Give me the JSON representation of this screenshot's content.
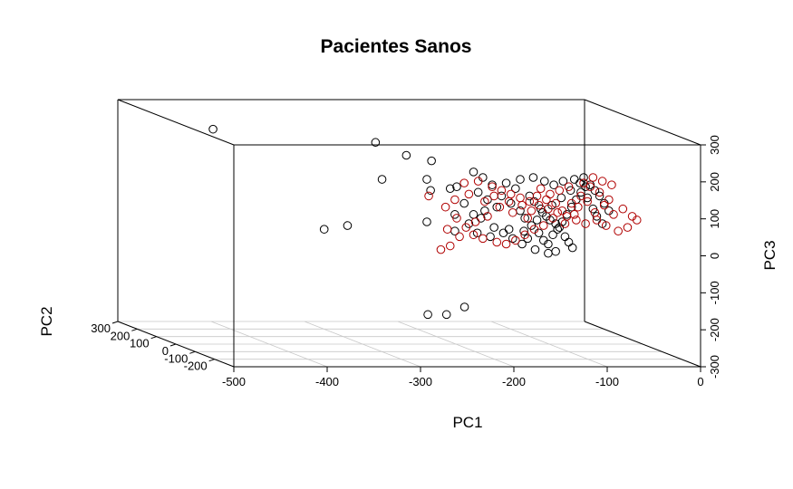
{
  "chart_data": {
    "type": "scatter",
    "title": "Pacientes Sanos",
    "xlabel": "PC1",
    "ylabel": "PC2",
    "zlabel": "PC3",
    "xlim": [
      -500,
      0
    ],
    "ylim": [
      -300,
      300
    ],
    "zlim": [
      -300,
      300
    ],
    "x_ticks": [
      "-500",
      "-400",
      "-300",
      "-200",
      "-100",
      "0"
    ],
    "y_ticks": [
      "-200",
      "-100",
      "0",
      "100",
      "200",
      "300"
    ],
    "z_ticks": [
      "-300",
      "-200",
      "-100",
      "0",
      "100",
      "200",
      "300"
    ],
    "grid": true,
    "series": [
      {
        "color": "#000000",
        "points": [
          {
            "x": -398,
            "y": 300,
            "z": 220
          },
          {
            "x": -255,
            "y": 150,
            "z": 215
          },
          {
            "x": -222,
            "y": 150,
            "z": 180
          },
          {
            "x": -195,
            "y": 150,
            "z": 165
          },
          {
            "x": -248,
            "y": 150,
            "z": 115
          },
          {
            "x": -200,
            "y": 150,
            "z": 115
          },
          {
            "x": -196,
            "y": 150,
            "z": 85
          },
          {
            "x": -175,
            "y": 150,
            "z": 90
          },
          {
            "x": -168,
            "y": 150,
            "z": 95
          },
          {
            "x": -285,
            "y": 150,
            "z": -10
          },
          {
            "x": -200,
            "y": 150,
            "z": 0
          },
          {
            "x": -310,
            "y": 150,
            "z": -20
          },
          {
            "x": -170,
            "y": 150,
            "z": 20
          },
          {
            "x": -170,
            "y": 150,
            "z": -25
          },
          {
            "x": -230,
            "y": 0,
            "z": -220
          },
          {
            "x": -210,
            "y": 0,
            "z": -220
          },
          {
            "x": -170,
            "y": 100,
            "z": -220
          },
          {
            "x": -150,
            "y": 150,
            "z": 135
          },
          {
            "x": -140,
            "y": 150,
            "z": 120
          },
          {
            "x": -130,
            "y": 150,
            "z": 100
          },
          {
            "x": -145,
            "y": 150,
            "z": 80
          },
          {
            "x": -120,
            "y": 150,
            "z": 70
          },
          {
            "x": -110,
            "y": 150,
            "z": 50
          },
          {
            "x": -125,
            "y": 150,
            "z": 40
          },
          {
            "x": -100,
            "y": 150,
            "z": 30
          },
          {
            "x": -95,
            "y": 150,
            "z": 10
          },
          {
            "x": -88,
            "y": 150,
            "z": -10
          },
          {
            "x": -80,
            "y": 150,
            "z": -30
          },
          {
            "x": -75,
            "y": 150,
            "z": -50
          },
          {
            "x": -70,
            "y": 150,
            "z": -60
          },
          {
            "x": -65,
            "y": 150,
            "z": -35
          },
          {
            "x": -60,
            "y": 150,
            "z": -20
          },
          {
            "x": -55,
            "y": 150,
            "z": 0
          },
          {
            "x": -50,
            "y": 150,
            "z": 20
          },
          {
            "x": -45,
            "y": 150,
            "z": 40
          },
          {
            "x": -40,
            "y": 150,
            "z": 60
          },
          {
            "x": -35,
            "y": 150,
            "z": 80
          },
          {
            "x": -30,
            "y": 150,
            "z": 95
          },
          {
            "x": -25,
            "y": 150,
            "z": 100
          },
          {
            "x": -20,
            "y": 150,
            "z": 85
          },
          {
            "x": -15,
            "y": 150,
            "z": 70
          },
          {
            "x": -10,
            "y": 150,
            "z": 50
          },
          {
            "x": -5,
            "y": 150,
            "z": 30
          },
          {
            "x": -115,
            "y": 150,
            "z": 105
          },
          {
            "x": -105,
            "y": 150,
            "z": 90
          },
          {
            "x": -90,
            "y": 150,
            "z": 70
          },
          {
            "x": -85,
            "y": 150,
            "z": 55
          },
          {
            "x": -78,
            "y": 150,
            "z": 35
          },
          {
            "x": -72,
            "y": 150,
            "z": 15
          },
          {
            "x": -68,
            "y": 150,
            "z": 5
          },
          {
            "x": -62,
            "y": 150,
            "z": -5
          },
          {
            "x": -58,
            "y": 150,
            "z": -15
          },
          {
            "x": -52,
            "y": 150,
            "z": -40
          },
          {
            "x": -48,
            "y": 150,
            "z": -55
          },
          {
            "x": -44,
            "y": 150,
            "z": -70
          },
          {
            "x": -135,
            "y": 150,
            "z": 60
          },
          {
            "x": -138,
            "y": 150,
            "z": 30
          },
          {
            "x": -142,
            "y": 150,
            "z": 10
          },
          {
            "x": -155,
            "y": 150,
            "z": -5
          },
          {
            "x": -160,
            "y": 150,
            "z": 50
          },
          {
            "x": -128,
            "y": 150,
            "z": -15
          },
          {
            "x": -118,
            "y": 150,
            "z": -30
          },
          {
            "x": -108,
            "y": 150,
            "z": -45
          },
          {
            "x": -98,
            "y": 150,
            "z": -60
          },
          {
            "x": -92,
            "y": 150,
            "z": -45
          },
          {
            "x": -82,
            "y": 150,
            "z": 5
          },
          {
            "x": -76,
            "y": 150,
            "z": 25
          },
          {
            "x": -66,
            "y": 150,
            "z": 45
          },
          {
            "x": -56,
            "y": 150,
            "z": 65
          },
          {
            "x": -46,
            "y": 150,
            "z": 85
          },
          {
            "x": -36,
            "y": 150,
            "z": 105
          },
          {
            "x": -28,
            "y": 150,
            "z": 65
          },
          {
            "x": -22,
            "y": 150,
            "z": 35
          },
          {
            "x": -18,
            "y": 150,
            "z": 15
          },
          {
            "x": -12,
            "y": 150,
            "z": -5
          },
          {
            "x": -100,
            "y": 150,
            "z": 115
          },
          {
            "x": -86,
            "y": 150,
            "z": 120
          },
          {
            "x": -74,
            "y": 150,
            "z": 110
          },
          {
            "x": -64,
            "y": 150,
            "z": 100
          },
          {
            "x": -54,
            "y": 150,
            "z": 110
          },
          {
            "x": -42,
            "y": 150,
            "z": 115
          },
          {
            "x": -32,
            "y": 150,
            "z": 120
          },
          {
            "x": -150,
            "y": 150,
            "z": 20
          },
          {
            "x": -146,
            "y": 150,
            "z": -30
          },
          {
            "x": -132,
            "y": 150,
            "z": -40
          },
          {
            "x": -112,
            "y": 150,
            "z": -20
          },
          {
            "x": -96,
            "y": 150,
            "z": -25
          },
          {
            "x": -84,
            "y": 150,
            "z": -75
          },
          {
            "x": -70,
            "y": 150,
            "z": -85
          },
          {
            "x": -62,
            "y": 150,
            "z": -80
          }
        ]
      },
      {
        "color": "#b00000",
        "points": [
          {
            "x": -198,
            "y": 150,
            "z": 70
          },
          {
            "x": -160,
            "y": 150,
            "z": 105
          },
          {
            "x": -145,
            "y": 150,
            "z": 110
          },
          {
            "x": -130,
            "y": 150,
            "z": 95
          },
          {
            "x": -120,
            "y": 150,
            "z": 85
          },
          {
            "x": -110,
            "y": 150,
            "z": 75
          },
          {
            "x": -100,
            "y": 150,
            "z": 65
          },
          {
            "x": -90,
            "y": 150,
            "z": 55
          },
          {
            "x": -80,
            "y": 150,
            "z": 45
          },
          {
            "x": -70,
            "y": 150,
            "z": 35
          },
          {
            "x": -60,
            "y": 150,
            "z": 25
          },
          {
            "x": -50,
            "y": 150,
            "z": 15
          },
          {
            "x": -40,
            "y": 150,
            "z": 5
          },
          {
            "x": -30,
            "y": 150,
            "z": -5
          },
          {
            "x": -20,
            "y": 150,
            "z": 25
          },
          {
            "x": -10,
            "y": 150,
            "z": 45
          },
          {
            "x": 0,
            "y": 150,
            "z": 20
          },
          {
            "x": 10,
            "y": 150,
            "z": 35
          },
          {
            "x": 20,
            "y": 150,
            "z": 15
          },
          {
            "x": 25,
            "y": 150,
            "z": 5
          },
          {
            "x": 15,
            "y": 150,
            "z": -15
          },
          {
            "x": 5,
            "y": 150,
            "z": -25
          },
          {
            "x": -5,
            "y": 150,
            "z": 60
          },
          {
            "x": -15,
            "y": 150,
            "z": 80
          },
          {
            "x": -25,
            "y": 150,
            "z": 95
          },
          {
            "x": -35,
            "y": 150,
            "z": 70
          },
          {
            "x": -45,
            "y": 150,
            "z": 50
          },
          {
            "x": -55,
            "y": 150,
            "z": 30
          },
          {
            "x": -65,
            "y": 150,
            "z": 10
          },
          {
            "x": -75,
            "y": 150,
            "z": -10
          },
          {
            "x": -85,
            "y": 150,
            "z": -20
          },
          {
            "x": -95,
            "y": 150,
            "z": -35
          },
          {
            "x": -105,
            "y": 150,
            "z": -50
          },
          {
            "x": -115,
            "y": 150,
            "z": -60
          },
          {
            "x": -125,
            "y": 150,
            "z": -55
          },
          {
            "x": -140,
            "y": 150,
            "z": -45
          },
          {
            "x": -150,
            "y": 150,
            "z": -35
          },
          {
            "x": -165,
            "y": 150,
            "z": -40
          },
          {
            "x": -175,
            "y": 150,
            "z": -65
          },
          {
            "x": -185,
            "y": 150,
            "z": -75
          },
          {
            "x": -180,
            "y": 150,
            "z": 40
          },
          {
            "x": -170,
            "y": 150,
            "z": 60
          },
          {
            "x": -155,
            "y": 150,
            "z": 75
          },
          {
            "x": -138,
            "y": 150,
            "z": 55
          },
          {
            "x": -122,
            "y": 150,
            "z": 40
          },
          {
            "x": -108,
            "y": 150,
            "z": 25
          },
          {
            "x": -92,
            "y": 150,
            "z": 10
          },
          {
            "x": -78,
            "y": 150,
            "z": 90
          },
          {
            "x": -68,
            "y": 150,
            "z": 75
          },
          {
            "x": -58,
            "y": 150,
            "z": 85
          },
          {
            "x": -48,
            "y": 150,
            "z": 95
          },
          {
            "x": -38,
            "y": 150,
            "z": 40
          },
          {
            "x": -28,
            "y": 150,
            "z": 55
          },
          {
            "x": -18,
            "y": 150,
            "z": 5
          },
          {
            "x": -8,
            "y": 150,
            "z": -10
          },
          {
            "x": -2,
            "y": 150,
            "z": 100
          },
          {
            "x": -12,
            "y": 150,
            "z": 110
          },
          {
            "x": -22,
            "y": 150,
            "z": 120
          },
          {
            "x": -32,
            "y": 150,
            "z": 105
          },
          {
            "x": -42,
            "y": 150,
            "z": 20
          },
          {
            "x": -52,
            "y": 150,
            "z": -5
          },
          {
            "x": -62,
            "y": 150,
            "z": 50
          },
          {
            "x": -72,
            "y": 150,
            "z": 60
          },
          {
            "x": -82,
            "y": 150,
            "z": 70
          },
          {
            "x": -88,
            "y": 150,
            "z": 30
          },
          {
            "x": -98,
            "y": 150,
            "z": 45
          },
          {
            "x": -112,
            "y": 150,
            "z": 55
          },
          {
            "x": -128,
            "y": 150,
            "z": 70
          },
          {
            "x": -135,
            "y": 150,
            "z": 15
          },
          {
            "x": -148,
            "y": 150,
            "z": 0
          },
          {
            "x": -158,
            "y": 150,
            "z": -15
          },
          {
            "x": -168,
            "y": 150,
            "z": 10
          },
          {
            "x": -178,
            "y": 150,
            "z": -20
          }
        ]
      }
    ]
  }
}
